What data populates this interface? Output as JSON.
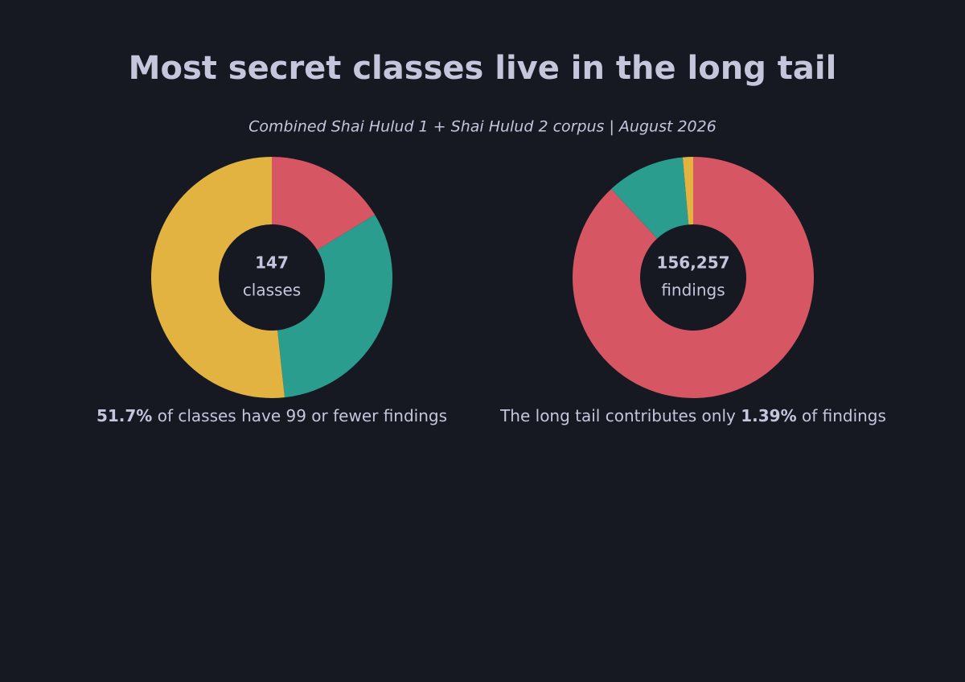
{
  "title": "Most secret classes live in the long tail",
  "subtitle": "Combined Shai Hulud 1 + Shai Hulud 2 corpus | August 2026",
  "chart_data": [
    {
      "type": "pie",
      "values": [
        16.3,
        32.0,
        51.7
      ],
      "colors": [
        "#d65763",
        "#2a9d8f",
        "#e3b341"
      ],
      "total": 147,
      "total_label": "classes",
      "caption_bold": "51.7%",
      "caption_after": " of classes have 99 or fewer findings"
    },
    {
      "type": "pie",
      "values": [
        88.11,
        10.5,
        1.39
      ],
      "colors": [
        "#d65763",
        "#2a9d8f",
        "#e3b341"
      ],
      "total": {
        "value": 156257,
        "label": "156,257"
      },
      "total_label": "findings",
      "caption_before": "The long tail contributes only ",
      "caption_bold": "1.39%",
      "caption_after": " of findings"
    }
  ]
}
